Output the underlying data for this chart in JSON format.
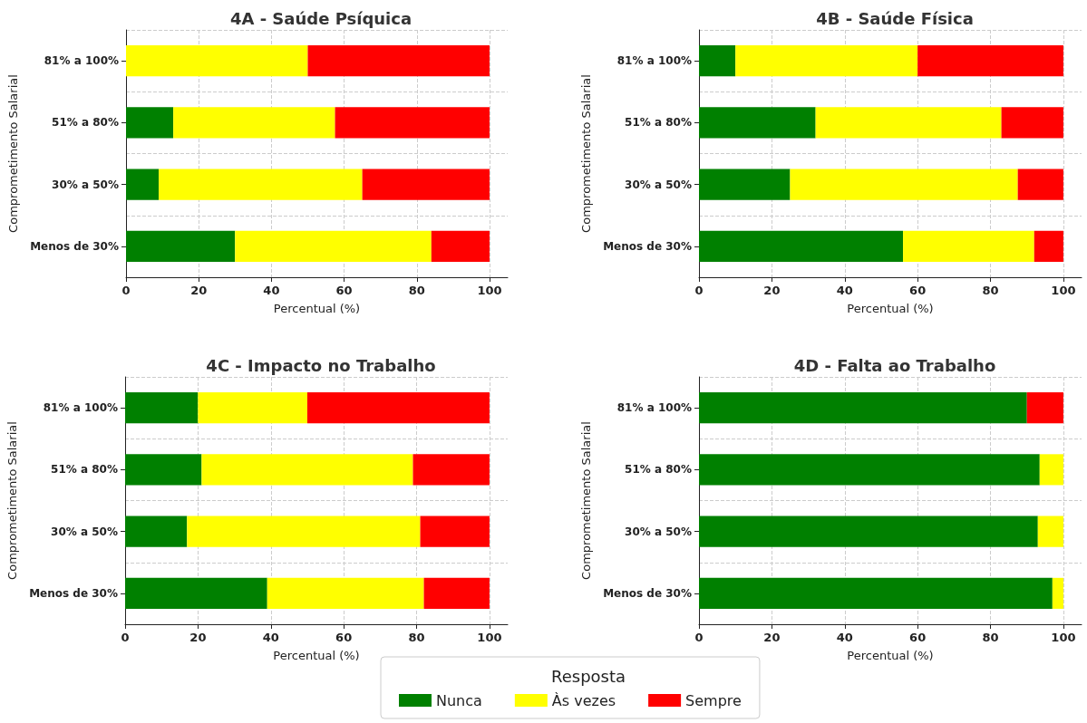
{
  "chart_data": [
    {
      "type": "bar",
      "orientation": "horizontal",
      "stacked": true,
      "grid": true,
      "title": "4A - Saúde Psíquica",
      "xlabel": "Percentual (%)",
      "ylabel": "Comprometimento Salarial",
      "categories": [
        "81% a 100%",
        "51% a 80%",
        "30% a 50%",
        "Menos de 30%"
      ],
      "xlim": [
        0,
        105
      ],
      "xticks": [
        0,
        20,
        40,
        60,
        80,
        100
      ],
      "series": [
        {
          "color": "#008000",
          "values": [
            0,
            13,
            9,
            30
          ]
        },
        {
          "color": "#ffff00",
          "values": [
            50,
            44.5,
            56,
            54
          ]
        },
        {
          "color": "#ff0000",
          "values": [
            50,
            42.5,
            35,
            16
          ]
        }
      ]
    },
    {
      "type": "bar",
      "orientation": "horizontal",
      "stacked": true,
      "grid": true,
      "title": "4B - Saúde Física",
      "xlabel": "Percentual (%)",
      "ylabel": "Comprometimento Salarial",
      "categories": [
        "81% a 100%",
        "51% a 80%",
        "30% a 50%",
        "Menos de 30%"
      ],
      "xlim": [
        0,
        105
      ],
      "xticks": [
        0,
        20,
        40,
        60,
        80,
        100
      ],
      "series": [
        {
          "color": "#008000",
          "values": [
            10,
            32,
            25,
            56
          ]
        },
        {
          "color": "#ffff00",
          "values": [
            50,
            51,
            62.5,
            36
          ]
        },
        {
          "color": "#ff0000",
          "values": [
            40,
            17,
            12.5,
            8
          ]
        }
      ]
    },
    {
      "type": "bar",
      "orientation": "horizontal",
      "stacked": true,
      "grid": true,
      "title": "4C - Impacto no Trabalho",
      "xlabel": "Percentual (%)",
      "ylabel": "Comprometimento Salarial",
      "legend": "bottom",
      "legend_title": "Resposta",
      "categories": [
        "81% a 100%",
        "51% a 80%",
        "30% a 50%",
        "Menos de 30%"
      ],
      "xlim": [
        0,
        105
      ],
      "xticks": [
        0,
        20,
        40,
        60,
        80,
        100
      ],
      "series": [
        {
          "name": "Nunca",
          "color": "#008000",
          "values": [
            20,
            21,
            17,
            39
          ]
        },
        {
          "name": "Às vezes",
          "color": "#ffff00",
          "values": [
            30,
            58,
            64,
            43
          ]
        },
        {
          "name": "Sempre",
          "color": "#ff0000",
          "values": [
            50,
            21,
            19,
            18
          ]
        }
      ]
    },
    {
      "type": "bar",
      "orientation": "horizontal",
      "stacked": true,
      "grid": true,
      "title": "4D - Falta ao Trabalho",
      "xlabel": "Percentual (%)",
      "ylabel": "Comprometimento Salarial",
      "categories": [
        "81% a 100%",
        "51% a 80%",
        "30% a 50%",
        "Menos de 30%"
      ],
      "xlim": [
        0,
        105
      ],
      "xticks": [
        0,
        20,
        40,
        60,
        80,
        100
      ],
      "series": [
        {
          "color": "#008000",
          "values": [
            90,
            93.5,
            93,
            97
          ]
        },
        {
          "color": "#ffff00",
          "values": [
            0,
            6.5,
            7,
            3
          ]
        },
        {
          "color": "#ff0000",
          "values": [
            10,
            0,
            0,
            0
          ]
        }
      ]
    }
  ]
}
